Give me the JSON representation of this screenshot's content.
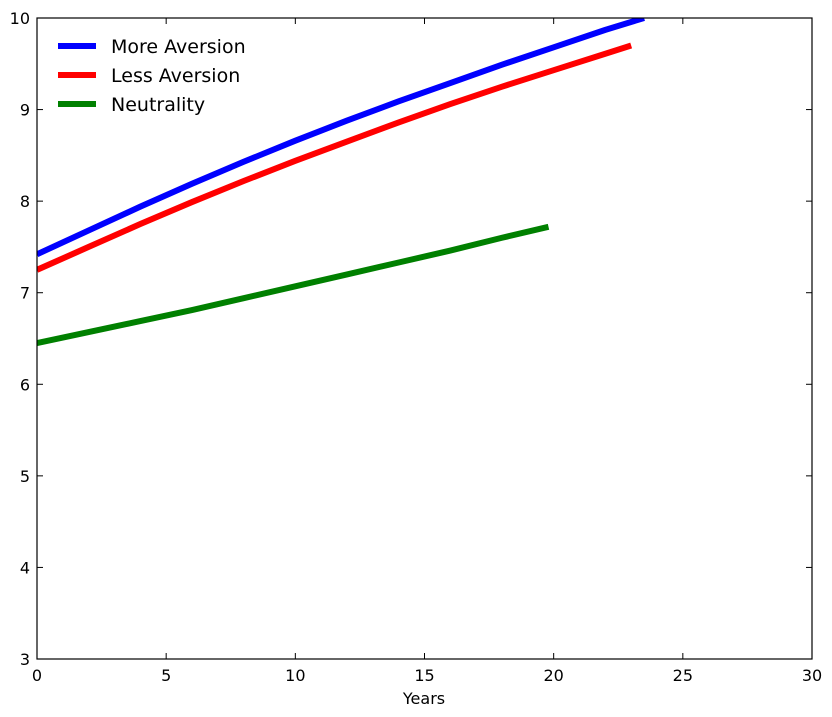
{
  "chart_data": {
    "type": "line",
    "title": "",
    "xlabel": "Years",
    "ylabel": "",
    "xlim": [
      0,
      30
    ],
    "ylim": [
      3,
      10
    ],
    "xticks": [
      0,
      5,
      10,
      15,
      20,
      25,
      30
    ],
    "yticks": [
      3,
      4,
      5,
      6,
      7,
      8,
      9,
      10
    ],
    "grid": false,
    "legend_position": "top-left",
    "series": [
      {
        "name": "More Aversion",
        "color": "#0000ff",
        "x": [
          0,
          2,
          4,
          6,
          8,
          10,
          12,
          14,
          16,
          18,
          20,
          22,
          23.5
        ],
        "y": [
          7.42,
          7.68,
          7.94,
          8.19,
          8.43,
          8.66,
          8.88,
          9.09,
          9.29,
          9.49,
          9.68,
          9.87,
          10.0
        ]
      },
      {
        "name": "Less Aversion",
        "color": "#ff0000",
        "x": [
          0,
          2,
          4,
          6,
          8,
          10,
          12,
          14,
          16,
          18,
          20,
          22,
          23
        ],
        "y": [
          7.25,
          7.5,
          7.75,
          7.99,
          8.22,
          8.44,
          8.65,
          8.86,
          9.06,
          9.25,
          9.43,
          9.61,
          9.7
        ]
      },
      {
        "name": "Neutrality",
        "color": "#008000",
        "x": [
          0,
          2,
          4,
          6,
          8,
          10,
          12,
          14,
          16,
          18,
          19.8
        ],
        "y": [
          6.45,
          6.57,
          6.69,
          6.81,
          6.94,
          7.07,
          7.2,
          7.33,
          7.46,
          7.6,
          7.72
        ]
      }
    ]
  }
}
